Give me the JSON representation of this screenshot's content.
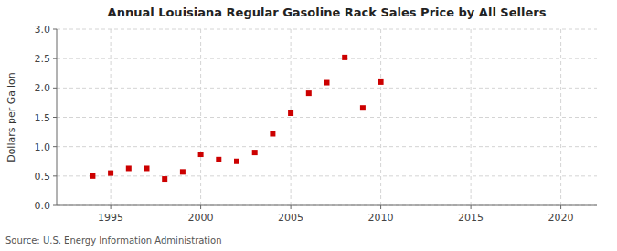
{
  "chart_data": {
    "type": "scatter",
    "title": "Annual Louisiana Regular Gasoline Rack Sales Price by All Sellers",
    "ylabel": "Dollars per Gallon",
    "source": "Source: U.S. Energy Information Administration",
    "x": [
      1994,
      1995,
      1996,
      1997,
      1998,
      1999,
      2000,
      2001,
      2002,
      2003,
      2004,
      2005,
      2006,
      2007,
      2008,
      2009,
      2010
    ],
    "values": [
      0.5,
      0.55,
      0.63,
      0.63,
      0.45,
      0.57,
      0.87,
      0.78,
      0.75,
      0.9,
      1.22,
      1.57,
      1.91,
      2.09,
      2.52,
      1.66,
      2.1
    ],
    "color": "#cc0000",
    "marker": "square",
    "xlim": [
      1992,
      2022
    ],
    "xticks": [
      1995,
      2000,
      2005,
      2010,
      2015,
      2020
    ],
    "ylim": [
      0.0,
      3.0
    ],
    "yticks": [
      {
        "value": 0.0,
        "label": "0.0"
      },
      0.5,
      {
        "value": 1.0,
        "label": "1.0"
      },
      1.5,
      {
        "value": 2.0,
        "label": "2.0"
      },
      2.5,
      {
        "value": 3.0,
        "label": "3.0"
      }
    ],
    "grid": true
  }
}
